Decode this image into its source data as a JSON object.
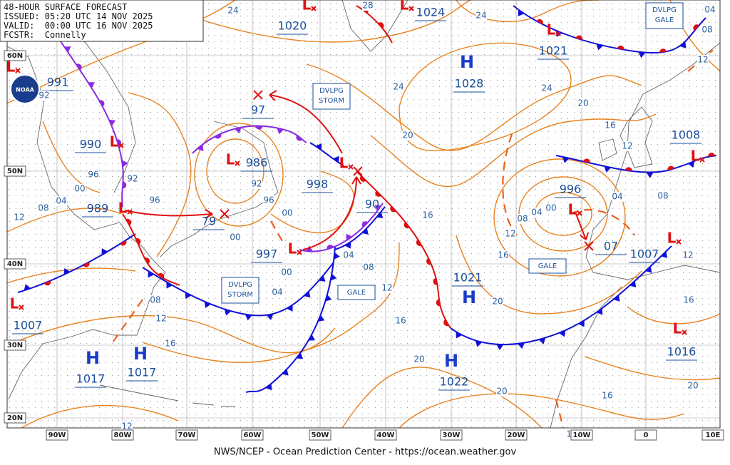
{
  "header": {
    "title": "48-HOUR SURFACE FORECAST",
    "issued": "ISSUED: 05:20 UTC 14 NOV 2025",
    "valid": "VALID:  00:00 UTC 16 NOV 2025",
    "forecaster": "FCSTR:  Connelly"
  },
  "logo": "NOAA",
  "footer": "NWS/NCEP - Ocean Prediction Center - https://ocean.weather.gov",
  "latitude_labels": [
    "60N",
    "50N",
    "40N",
    "30N",
    "20N"
  ],
  "longitude_labels": [
    "90W",
    "80W",
    "70W",
    "60W",
    "50W",
    "40W",
    "30W",
    "20W",
    "10W",
    "0",
    "10E"
  ],
  "pressure_centers": [
    {
      "symbol": "H",
      "pressure": "1028"
    },
    {
      "symbol": "H",
      "pressure": "1021"
    },
    {
      "symbol": "H",
      "pressure": "1022"
    },
    {
      "symbol": "H",
      "pressure": "1017"
    },
    {
      "symbol": "H",
      "pressure": "1017"
    },
    {
      "symbol": "L",
      "pressure": "991"
    },
    {
      "symbol": "L",
      "pressure": "990"
    },
    {
      "symbol": "L",
      "pressure": "989"
    },
    {
      "symbol": "L",
      "pressure": "1007"
    },
    {
      "symbol": "L",
      "pressure": "986"
    },
    {
      "pressure": "79"
    },
    {
      "pressure": "97"
    },
    {
      "symbol": "L",
      "pressure": "998"
    },
    {
      "pressure": "90"
    },
    {
      "symbol": "L",
      "pressure": "997"
    },
    {
      "symbol": "L",
      "pressure": "996"
    },
    {
      "pressure": "07"
    },
    {
      "symbol": "L",
      "pressure": "1007"
    },
    {
      "symbol": "L",
      "pressure": "1008"
    },
    {
      "symbol": "L",
      "pressure": "1016"
    },
    {
      "symbol": "L",
      "pressure": "1020"
    },
    {
      "symbol": "L",
      "pressure": "1024"
    },
    {
      "symbol": "L",
      "pressure": "1021"
    }
  ],
  "warnings": [
    "DVLPG STORM",
    "DVLPG STORM",
    "DVLPG GALE",
    "GALE",
    "GALE"
  ],
  "isobar_labels": [
    "24",
    "28",
    "24",
    "24",
    "24",
    "20",
    "20",
    "16",
    "12",
    "04",
    "08",
    "12",
    "92",
    "96",
    "00",
    "04",
    "08",
    "12",
    "92",
    "96",
    "92",
    "96",
    "00",
    "00",
    "00",
    "04",
    "04",
    "08",
    "12",
    "16",
    "16",
    "20",
    "20",
    "20",
    "16",
    "12",
    "08",
    "04",
    "00",
    "04",
    "08",
    "12",
    "16",
    "20",
    "16",
    "12",
    "12",
    "08",
    "12",
    "16"
  ]
}
